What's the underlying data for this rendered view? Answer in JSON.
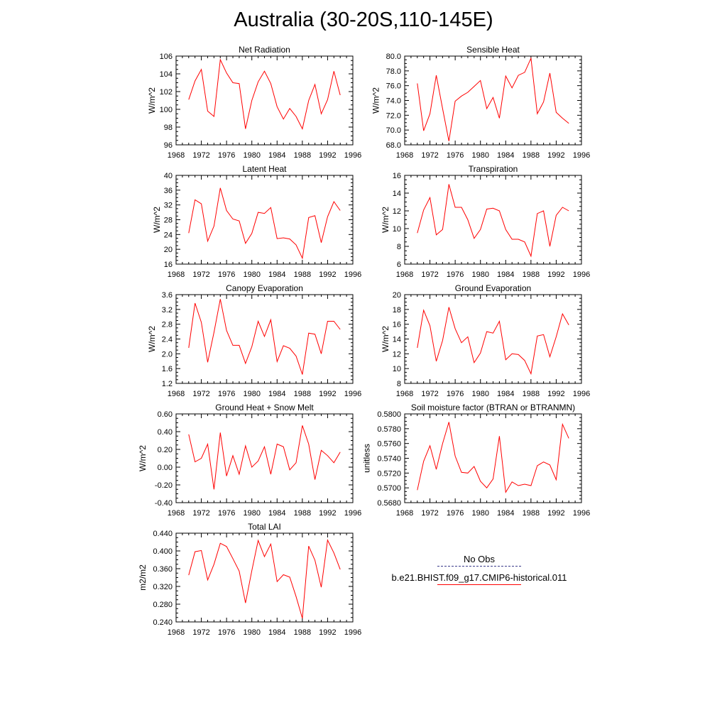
{
  "title": "Australia (30-20S,110-145E)",
  "line_color": "#ff0000",
  "obs_line_color": "#3b3b8a",
  "legend": {
    "obs_label": "No Obs",
    "model_label": "b.e21.BHIST.f09_g17.CMIP6-historical.011"
  },
  "chart_data": [
    {
      "type": "line",
      "title": "Net Radiation",
      "xlabel": "",
      "ylabel": "W/m^2",
      "xlim": [
        1968,
        1996
      ],
      "ylim": [
        96,
        106
      ],
      "x_ticks": [
        "1968",
        "1972",
        "1976",
        "1980",
        "1984",
        "1988",
        "1992",
        "1996"
      ],
      "y_ticks": [
        "96",
        "98",
        "100",
        "102",
        "104",
        "106"
      ],
      "series": [
        {
          "x": [
            1970,
            1971,
            1972,
            1973,
            1974,
            1975,
            1976,
            1977,
            1978,
            1979,
            1980,
            1981,
            1982,
            1983,
            1984,
            1985,
            1986,
            1987,
            1988,
            1989,
            1990,
            1991,
            1992,
            1993,
            1994
          ],
          "values": [
            101.1,
            103.2,
            104.5,
            99.8,
            99.2,
            105.6,
            104.1,
            103.0,
            102.9,
            97.8,
            101.0,
            103.1,
            104.3,
            102.9,
            100.3,
            98.9,
            100.1,
            99.2,
            97.8,
            101.0,
            102.8,
            99.5,
            101.1,
            104.3,
            101.6
          ]
        }
      ]
    },
    {
      "type": "line",
      "title": "Sensible Heat",
      "xlabel": "",
      "ylabel": "W/m^2",
      "xlim": [
        1968,
        1996
      ],
      "ylim": [
        68,
        80
      ],
      "x_ticks": [
        "1968",
        "1972",
        "1976",
        "1980",
        "1984",
        "1988",
        "1992",
        "1996"
      ],
      "y_ticks": [
        "68.0",
        "70.0",
        "72.0",
        "74.0",
        "76.0",
        "78.0",
        "80.0"
      ],
      "series": [
        {
          "x": [
            1970,
            1971,
            1972,
            1973,
            1974,
            1975,
            1976,
            1977,
            1978,
            1979,
            1980,
            1981,
            1982,
            1983,
            1984,
            1985,
            1986,
            1987,
            1988,
            1989,
            1990,
            1991,
            1992,
            1993,
            1994
          ],
          "values": [
            76.3,
            69.9,
            72.2,
            77.4,
            72.9,
            68.5,
            73.9,
            74.6,
            75.1,
            75.9,
            76.7,
            72.9,
            74.4,
            71.6,
            77.3,
            75.7,
            77.4,
            77.8,
            79.7,
            72.2,
            73.8,
            77.7,
            72.4,
            71.6,
            70.9
          ]
        }
      ]
    },
    {
      "type": "line",
      "title": "Latent Heat",
      "xlabel": "",
      "ylabel": "W/m^2",
      "xlim": [
        1968,
        1996
      ],
      "ylim": [
        16,
        40
      ],
      "x_ticks": [
        "1968",
        "1972",
        "1976",
        "1980",
        "1984",
        "1988",
        "1992",
        "1996"
      ],
      "y_ticks": [
        "16",
        "20",
        "24",
        "28",
        "32",
        "36",
        "40"
      ],
      "series": [
        {
          "x": [
            1970,
            1971,
            1972,
            1973,
            1974,
            1975,
            1976,
            1977,
            1978,
            1979,
            1980,
            1981,
            1982,
            1983,
            1984,
            1985,
            1986,
            1987,
            1988,
            1989,
            1990,
            1991,
            1992,
            1993,
            1994
          ],
          "values": [
            24.4,
            33.4,
            32.3,
            22.2,
            26.3,
            36.6,
            30.5,
            28.2,
            27.7,
            21.6,
            24.3,
            30.0,
            29.7,
            31.3,
            22.9,
            23.1,
            22.8,
            21.2,
            17.6,
            28.6,
            29.1,
            21.8,
            28.8,
            32.9,
            30.5
          ]
        }
      ]
    },
    {
      "type": "line",
      "title": "Transpiration",
      "xlabel": "",
      "ylabel": "W/m^2",
      "xlim": [
        1968,
        1996
      ],
      "ylim": [
        6,
        16
      ],
      "x_ticks": [
        "1968",
        "1972",
        "1976",
        "1980",
        "1984",
        "1988",
        "1992",
        "1996"
      ],
      "y_ticks": [
        "6",
        "8",
        "10",
        "12",
        "14",
        "16"
      ],
      "series": [
        {
          "x": [
            1970,
            1971,
            1972,
            1973,
            1974,
            1975,
            1976,
            1977,
            1978,
            1979,
            1980,
            1981,
            1982,
            1983,
            1984,
            1985,
            1986,
            1987,
            1988,
            1989,
            1990,
            1991,
            1992,
            1993,
            1994
          ],
          "values": [
            9.5,
            12.1,
            13.5,
            9.3,
            9.9,
            15.0,
            12.4,
            12.4,
            11.0,
            8.9,
            9.9,
            12.2,
            12.3,
            12.0,
            9.9,
            8.8,
            8.8,
            8.5,
            6.9,
            11.7,
            12.0,
            8.0,
            11.5,
            12.4,
            12.0
          ]
        }
      ]
    },
    {
      "type": "line",
      "title": "Canopy Evaporation",
      "xlabel": "",
      "ylabel": "W/m^2",
      "xlim": [
        1968,
        1996
      ],
      "ylim": [
        1.2,
        3.6
      ],
      "x_ticks": [
        "1968",
        "1972",
        "1976",
        "1980",
        "1984",
        "1988",
        "1992",
        "1996"
      ],
      "y_ticks": [
        "1.2",
        "1.6",
        "2.0",
        "2.4",
        "2.8",
        "3.2",
        "3.6"
      ],
      "series": [
        {
          "x": [
            1970,
            1971,
            1972,
            1973,
            1974,
            1975,
            1976,
            1977,
            1978,
            1979,
            1980,
            1981,
            1982,
            1983,
            1984,
            1985,
            1986,
            1987,
            1988,
            1989,
            1990,
            1991,
            1992,
            1993,
            1994
          ],
          "values": [
            2.16,
            3.37,
            2.85,
            1.77,
            2.58,
            3.48,
            2.63,
            2.23,
            2.23,
            1.74,
            2.19,
            2.88,
            2.47,
            2.92,
            1.79,
            2.22,
            2.15,
            1.94,
            1.44,
            2.56,
            2.53,
            2.0,
            2.88,
            2.88,
            2.66
          ]
        }
      ]
    },
    {
      "type": "line",
      "title": "Ground Evaporation",
      "xlabel": "",
      "ylabel": "W/m^2",
      "xlim": [
        1968,
        1996
      ],
      "ylim": [
        8,
        20
      ],
      "x_ticks": [
        "1968",
        "1972",
        "1976",
        "1980",
        "1984",
        "1988",
        "1992",
        "1996"
      ],
      "y_ticks": [
        "8",
        "10",
        "12",
        "14",
        "16",
        "18",
        "20"
      ],
      "series": [
        {
          "x": [
            1970,
            1971,
            1972,
            1973,
            1974,
            1975,
            1976,
            1977,
            1978,
            1979,
            1980,
            1981,
            1982,
            1983,
            1984,
            1985,
            1986,
            1987,
            1988,
            1989,
            1990,
            1991,
            1992,
            1993,
            1994
          ],
          "values": [
            12.8,
            17.9,
            15.8,
            11.0,
            13.8,
            18.3,
            15.4,
            13.5,
            14.3,
            10.8,
            12.1,
            15.0,
            14.8,
            16.4,
            11.2,
            12.0,
            11.9,
            11.1,
            9.3,
            14.4,
            14.6,
            11.6,
            14.3,
            17.4,
            15.9
          ]
        }
      ]
    },
    {
      "type": "line",
      "title": "Ground Heat + Snow Melt",
      "xlabel": "",
      "ylabel": "W/m^2",
      "xlim": [
        1968,
        1996
      ],
      "ylim": [
        -0.4,
        0.6
      ],
      "x_ticks": [
        "1968",
        "1972",
        "1976",
        "1980",
        "1984",
        "1988",
        "1992",
        "1996"
      ],
      "y_ticks": [
        "-0.40",
        "-0.20",
        "0.00",
        "0.20",
        "0.40",
        "0.60"
      ],
      "series": [
        {
          "x": [
            1970,
            1971,
            1972,
            1973,
            1974,
            1975,
            1976,
            1977,
            1978,
            1979,
            1980,
            1981,
            1982,
            1983,
            1984,
            1985,
            1986,
            1987,
            1988,
            1989,
            1990,
            1991,
            1992,
            1993,
            1994
          ],
          "values": [
            0.37,
            0.06,
            0.1,
            0.26,
            -0.25,
            0.39,
            -0.1,
            0.13,
            -0.08,
            0.24,
            0.0,
            0.07,
            0.23,
            -0.08,
            0.26,
            0.23,
            -0.03,
            0.05,
            0.47,
            0.26,
            -0.14,
            0.19,
            0.13,
            0.05,
            0.17
          ]
        }
      ]
    },
    {
      "type": "line",
      "title": "Soil moisture factor (BTRAN or BTRANMN)",
      "xlabel": "",
      "ylabel": "unitless",
      "xlim": [
        1968,
        1996
      ],
      "ylim": [
        0.568,
        0.58
      ],
      "x_ticks": [
        "1968",
        "1972",
        "1976",
        "1980",
        "1984",
        "1988",
        "1992",
        "1996"
      ],
      "y_ticks": [
        "0.5680",
        "0.5700",
        "0.5720",
        "0.5740",
        "0.5760",
        "0.5780",
        "0.5800"
      ],
      "series": [
        {
          "x": [
            1970,
            1971,
            1972,
            1973,
            1974,
            1975,
            1976,
            1977,
            1978,
            1979,
            1980,
            1981,
            1982,
            1983,
            1984,
            1985,
            1986,
            1987,
            1988,
            1989,
            1990,
            1991,
            1992,
            1993,
            1994
          ],
          "values": [
            0.5697,
            0.5736,
            0.5757,
            0.5725,
            0.576,
            0.5789,
            0.5743,
            0.5721,
            0.572,
            0.5729,
            0.5709,
            0.57,
            0.5712,
            0.577,
            0.5694,
            0.5708,
            0.5703,
            0.5705,
            0.5703,
            0.573,
            0.5735,
            0.5731,
            0.5711,
            0.5786,
            0.5767
          ]
        }
      ]
    },
    {
      "type": "line",
      "title": "Total LAI",
      "xlabel": "",
      "ylabel": "m2/m2",
      "xlim": [
        1968,
        1996
      ],
      "ylim": [
        0.24,
        0.46
      ],
      "x_ticks": [
        "1968",
        "1972",
        "1976",
        "1980",
        "1984",
        "1988",
        "1992",
        "1996"
      ],
      "y_ticks": [
        "0.240",
        "0.280",
        "0.320",
        "0.360",
        "0.400",
        "0.440"
      ],
      "series": [
        {
          "x": [
            1970,
            1971,
            1972,
            1973,
            1974,
            1975,
            1976,
            1977,
            1978,
            1979,
            1980,
            1981,
            1982,
            1983,
            1984,
            1985,
            1986,
            1987,
            1988,
            1989,
            1990,
            1991,
            1992,
            1993,
            1994
          ],
          "values": [
            0.356,
            0.414,
            0.417,
            0.344,
            0.383,
            0.435,
            0.427,
            0.397,
            0.366,
            0.287,
            0.367,
            0.442,
            0.402,
            0.433,
            0.34,
            0.357,
            0.351,
            0.303,
            0.249,
            0.428,
            0.393,
            0.326,
            0.443,
            0.411,
            0.37
          ]
        }
      ]
    }
  ]
}
